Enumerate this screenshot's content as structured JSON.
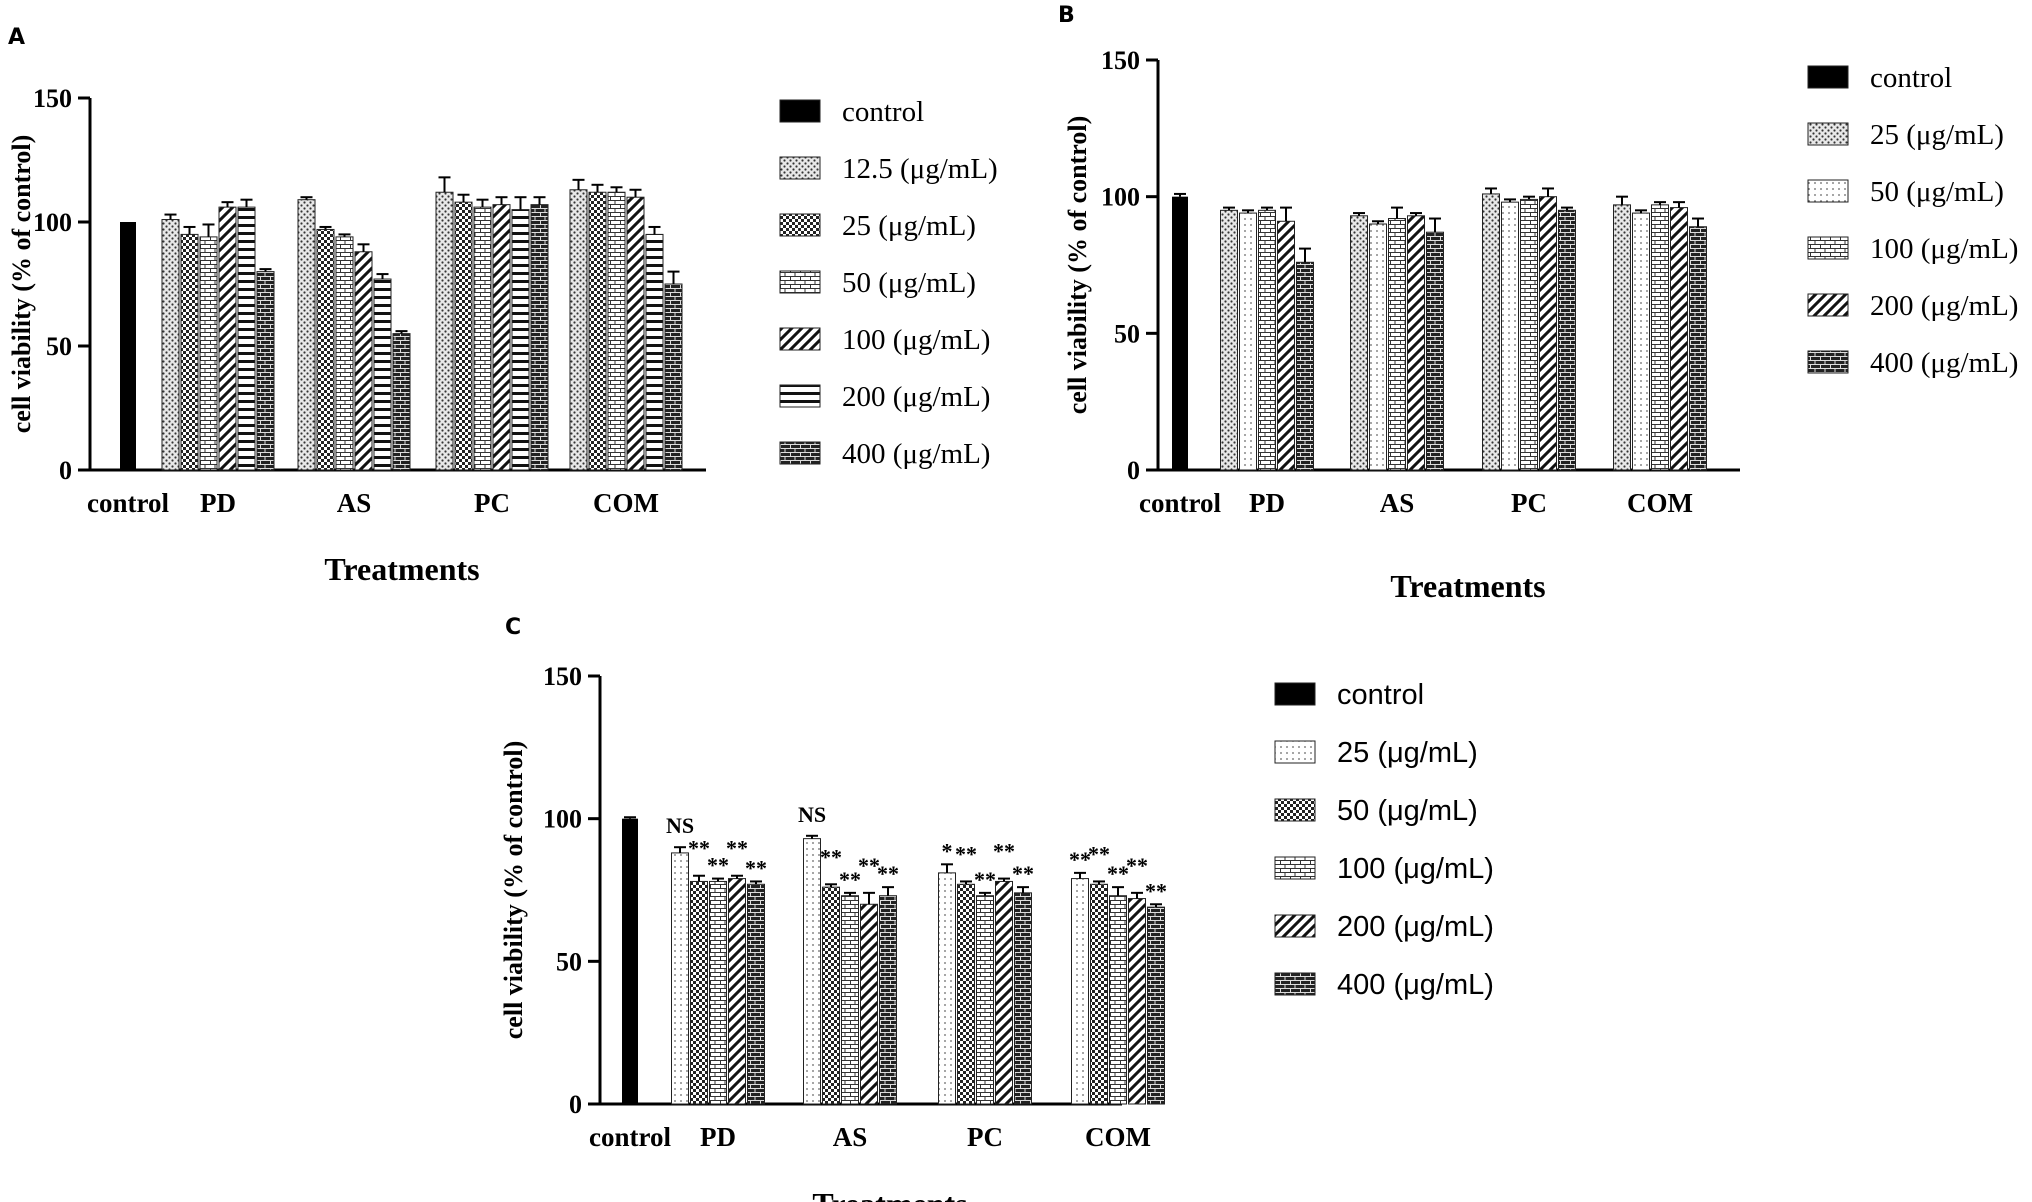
{
  "chart_data": [
    {
      "type": "bar",
      "panel": "A",
      "ylabel": "cell viability (% of control)",
      "xlabel": "Treatments",
      "ylim": [
        0,
        150
      ],
      "yticks": [
        "0",
        "50",
        "100",
        "150"
      ],
      "control": {
        "label": "control",
        "value": 100,
        "error": 0
      },
      "categories": [
        "PD",
        "AS",
        "PC",
        "COM"
      ],
      "series": [
        {
          "name": "12.5 (μg/mL)",
          "pattern": "dots-dense",
          "values": [
            101,
            109,
            112,
            113
          ],
          "errors": [
            2,
            1,
            6,
            4
          ]
        },
        {
          "name": "25 (μg/mL)",
          "pattern": "checker",
          "values": [
            95,
            97,
            108,
            112
          ],
          "errors": [
            3,
            1,
            3,
            3
          ]
        },
        {
          "name": "50 (μg/mL)",
          "pattern": "brick",
          "values": [
            94,
            94,
            106,
            112
          ],
          "errors": [
            5,
            1,
            3,
            2
          ]
        },
        {
          "name": "100 (μg/mL)",
          "pattern": "diagonal",
          "values": [
            106,
            88,
            107,
            110
          ],
          "errors": [
            2,
            3,
            3,
            3
          ]
        },
        {
          "name": "200 (μg/mL)",
          "pattern": "hstripes",
          "values": [
            106,
            77,
            105,
            95
          ],
          "errors": [
            3,
            2,
            5,
            3
          ]
        },
        {
          "name": "400 (μg/mL)",
          "pattern": "dark-brick",
          "values": [
            80,
            55,
            107,
            75
          ],
          "errors": [
            1,
            1,
            3,
            5
          ]
        }
      ],
      "significance": []
    },
    {
      "type": "bar",
      "panel": "B",
      "ylabel": "cell viability (% of control)",
      "xlabel": "Treatments",
      "ylim": [
        0,
        150
      ],
      "yticks": [
        "0",
        "50",
        "100",
        "150"
      ],
      "control": {
        "label": "control",
        "value": 100,
        "error": 1
      },
      "categories": [
        "PD",
        "AS",
        "PC",
        "COM"
      ],
      "series": [
        {
          "name": "25 (μg/mL)",
          "pattern": "dots-dense",
          "values": [
            95,
            93,
            101,
            97
          ],
          "errors": [
            1,
            1,
            2,
            3
          ]
        },
        {
          "name": "50 (μg/mL)",
          "pattern": "dots-sparse",
          "values": [
            94,
            90,
            98,
            94
          ],
          "errors": [
            1,
            1,
            1,
            1
          ]
        },
        {
          "name": "100 (μg/mL)",
          "pattern": "brick",
          "values": [
            95,
            92,
            99,
            97
          ],
          "errors": [
            1,
            4,
            1,
            1
          ]
        },
        {
          "name": "200 (μg/mL)",
          "pattern": "diagonal",
          "values": [
            91,
            93,
            100,
            96
          ],
          "errors": [
            5,
            1,
            3,
            2
          ]
        },
        {
          "name": "400 (μg/mL)",
          "pattern": "dark-brick",
          "values": [
            76,
            87,
            95,
            89
          ],
          "errors": [
            5,
            5,
            1,
            3
          ]
        }
      ],
      "significance": []
    },
    {
      "type": "bar",
      "panel": "C",
      "ylabel": "cell viability (% of control)",
      "xlabel": "Treatments",
      "ylim": [
        0,
        150
      ],
      "yticks": [
        "0",
        "50",
        "100",
        "150"
      ],
      "control": {
        "label": "control",
        "value": 100,
        "error": 0.5
      },
      "categories": [
        "PD",
        "AS",
        "PC",
        "COM"
      ],
      "series": [
        {
          "name": "25 (μg/mL)",
          "pattern": "dots-sparse",
          "values": [
            88,
            93,
            81,
            79
          ],
          "errors": [
            2,
            1,
            3,
            2
          ]
        },
        {
          "name": "50 (μg/mL)",
          "pattern": "checker",
          "values": [
            78,
            76,
            77,
            77
          ],
          "errors": [
            2,
            1,
            1,
            1
          ]
        },
        {
          "name": "100 (μg/mL)",
          "pattern": "brick",
          "values": [
            78,
            73,
            73,
            73
          ],
          "errors": [
            1,
            1,
            1,
            3
          ]
        },
        {
          "name": "200 (μg/mL)",
          "pattern": "diagonal",
          "values": [
            79,
            70,
            78,
            72
          ],
          "errors": [
            1,
            4,
            1,
            2
          ]
        },
        {
          "name": "400 (μg/mL)",
          "pattern": "dark-brick",
          "values": [
            77,
            73,
            74,
            69
          ],
          "errors": [
            1,
            3,
            2,
            1
          ]
        }
      ],
      "significance": [
        [
          "NS",
          "**",
          "**",
          "**",
          "**"
        ],
        [
          "NS",
          "**",
          "**",
          "**",
          "**"
        ],
        [
          "*",
          "**",
          "**",
          "**",
          "**"
        ],
        [
          "**",
          "**",
          "**",
          "**",
          "**"
        ]
      ]
    }
  ]
}
